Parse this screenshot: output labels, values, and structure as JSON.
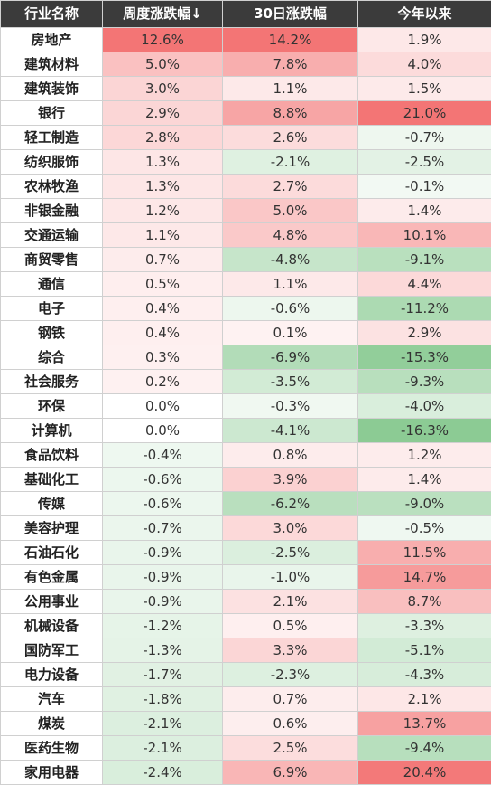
{
  "chart_data": {
    "type": "heatmap",
    "columns": [
      "行业名称",
      "周度涨跌幅↓",
      "30日涨跌幅",
      "今年以来"
    ],
    "rows": [
      {
        "name": "房地产",
        "week": "12.6%",
        "d30": "14.2%",
        "ytd": "1.9%"
      },
      {
        "name": "建筑材料",
        "week": "5.0%",
        "d30": "7.8%",
        "ytd": "4.0%"
      },
      {
        "name": "建筑装饰",
        "week": "3.0%",
        "d30": "1.1%",
        "ytd": "1.5%"
      },
      {
        "name": "银行",
        "week": "2.9%",
        "d30": "8.8%",
        "ytd": "21.0%"
      },
      {
        "name": "轻工制造",
        "week": "2.8%",
        "d30": "2.6%",
        "ytd": "-0.7%"
      },
      {
        "name": "纺织服饰",
        "week": "1.3%",
        "d30": "-2.1%",
        "ytd": "-2.5%"
      },
      {
        "name": "农林牧渔",
        "week": "1.3%",
        "d30": "2.7%",
        "ytd": "-0.1%"
      },
      {
        "name": "非银金融",
        "week": "1.2%",
        "d30": "5.0%",
        "ytd": "1.4%"
      },
      {
        "name": "交通运输",
        "week": "1.1%",
        "d30": "4.8%",
        "ytd": "10.1%"
      },
      {
        "name": "商贸零售",
        "week": "0.7%",
        "d30": "-4.8%",
        "ytd": "-9.1%"
      },
      {
        "name": "通信",
        "week": "0.5%",
        "d30": "1.1%",
        "ytd": "4.4%"
      },
      {
        "name": "电子",
        "week": "0.4%",
        "d30": "-0.6%",
        "ytd": "-11.2%"
      },
      {
        "name": "钢铁",
        "week": "0.4%",
        "d30": "0.1%",
        "ytd": "2.9%"
      },
      {
        "name": "综合",
        "week": "0.3%",
        "d30": "-6.9%",
        "ytd": "-15.3%"
      },
      {
        "name": "社会服务",
        "week": "0.2%",
        "d30": "-3.5%",
        "ytd": "-9.3%"
      },
      {
        "name": "环保",
        "week": "0.0%",
        "d30": "-0.3%",
        "ytd": "-4.0%"
      },
      {
        "name": "计算机",
        "week": "0.0%",
        "d30": "-4.1%",
        "ytd": "-16.3%"
      },
      {
        "name": "食品饮料",
        "week": "-0.4%",
        "d30": "0.8%",
        "ytd": "1.2%"
      },
      {
        "name": "基础化工",
        "week": "-0.6%",
        "d30": "3.9%",
        "ytd": "1.4%"
      },
      {
        "name": "传媒",
        "week": "-0.6%",
        "d30": "-6.2%",
        "ytd": "-9.0%"
      },
      {
        "name": "美容护理",
        "week": "-0.7%",
        "d30": "3.0%",
        "ytd": "-0.5%"
      },
      {
        "name": "石油石化",
        "week": "-0.9%",
        "d30": "-2.5%",
        "ytd": "11.5%"
      },
      {
        "name": "有色金属",
        "week": "-0.9%",
        "d30": "-1.0%",
        "ytd": "14.7%"
      },
      {
        "name": "公用事业",
        "week": "-0.9%",
        "d30": "2.1%",
        "ytd": "8.7%"
      },
      {
        "name": "机械设备",
        "week": "-1.2%",
        "d30": "0.5%",
        "ytd": "-3.3%"
      },
      {
        "name": "国防军工",
        "week": "-1.3%",
        "d30": "3.3%",
        "ytd": "-5.1%"
      },
      {
        "name": "电力设备",
        "week": "-1.7%",
        "d30": "-2.3%",
        "ytd": "-4.3%"
      },
      {
        "name": "汽车",
        "week": "-1.8%",
        "d30": "0.7%",
        "ytd": "2.1%"
      },
      {
        "name": "煤炭",
        "week": "-2.1%",
        "d30": "0.6%",
        "ytd": "13.7%"
      },
      {
        "name": "医药生物",
        "week": "-2.1%",
        "d30": "2.5%",
        "ytd": "-9.4%"
      },
      {
        "name": "家用电器",
        "week": "-2.4%",
        "d30": "6.9%",
        "ytd": "20.4%"
      }
    ],
    "colors": {
      "header_bg": "#3b3b3b",
      "positive": "#f26b6b",
      "negative": "#63b96f",
      "neutral": "#ffffff"
    }
  }
}
